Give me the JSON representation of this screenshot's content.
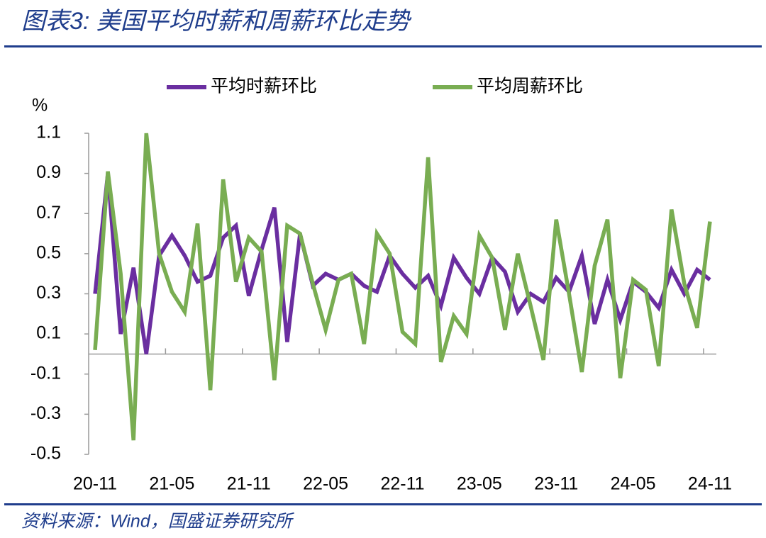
{
  "chart_data": {
    "type": "line",
    "title": "图表3:  美国平均时薪和周薪环比走势",
    "source": "资料来源：Wind，国盛证券研究所",
    "y_label": "%",
    "categories": [
      "20-11",
      null,
      null,
      null,
      null,
      null,
      "21-05",
      null,
      null,
      null,
      null,
      null,
      "21-11",
      null,
      null,
      null,
      null,
      null,
      "22-05",
      null,
      null,
      null,
      null,
      null,
      "22-11",
      null,
      null,
      null,
      null,
      null,
      "23-05",
      null,
      null,
      null,
      null,
      null,
      "23-11",
      null,
      null,
      null,
      null,
      null,
      "24-05",
      null,
      null,
      null,
      null,
      null,
      "24-11"
    ],
    "series": [
      {
        "name": "平均时薪环比",
        "color": "#6a2ea0",
        "values": [
          0.3,
          0.9,
          0.1,
          0.43,
          0.0,
          0.49,
          0.59,
          0.49,
          0.36,
          0.39,
          0.58,
          0.64,
          0.29,
          0.52,
          0.73,
          0.06,
          0.6,
          0.34,
          0.4,
          0.37,
          0.4,
          0.34,
          0.31,
          0.49,
          0.4,
          0.33,
          0.39,
          0.24,
          0.48,
          0.38,
          0.3,
          0.48,
          0.41,
          0.21,
          0.3,
          0.26,
          0.38,
          0.31,
          0.49,
          0.15,
          0.37,
          0.17,
          0.36,
          0.31,
          0.23,
          0.42,
          0.3,
          0.42,
          0.37
        ]
      },
      {
        "name": "平均周薪环比",
        "color": "#79ad52",
        "values": [
          0.02,
          0.91,
          0.4,
          -0.43,
          1.1,
          0.5,
          0.31,
          0.21,
          0.65,
          -0.18,
          0.87,
          0.36,
          0.58,
          0.51,
          -0.13,
          0.64,
          0.6,
          0.35,
          0.12,
          0.37,
          0.4,
          0.05,
          0.6,
          0.5,
          0.11,
          0.05,
          0.98,
          -0.04,
          0.19,
          0.1,
          0.59,
          0.48,
          0.12,
          0.5,
          0.24,
          -0.03,
          0.67,
          0.3,
          -0.09,
          0.44,
          0.67,
          -0.12,
          0.37,
          0.32,
          -0.06,
          0.72,
          0.35,
          0.13,
          0.66
        ]
      }
    ],
    "ylim": [
      -0.5,
      1.1
    ],
    "yticks": [
      -0.5,
      -0.3,
      -0.1,
      0.1,
      0.3,
      0.5,
      0.7,
      0.9,
      1.1
    ]
  }
}
